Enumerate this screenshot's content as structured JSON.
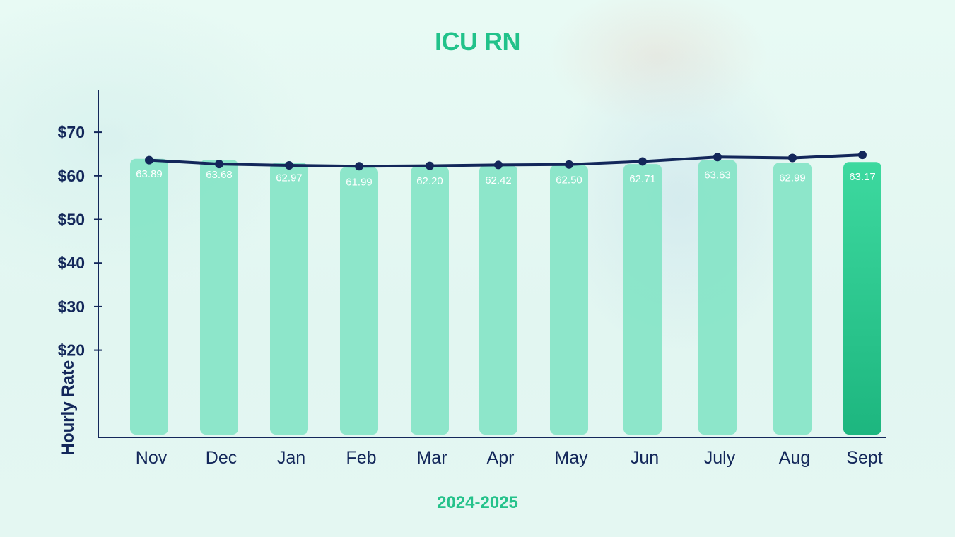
{
  "chart_data": {
    "type": "bar",
    "title": "ICU RN",
    "xlabel": "2024-2025",
    "ylabel": "Hourly Rate",
    "categories": [
      "Nov",
      "Dec",
      "Jan",
      "Feb",
      "Mar",
      "Apr",
      "May",
      "Jun",
      "July",
      "Aug",
      "Sept"
    ],
    "values": [
      63.89,
      63.68,
      62.97,
      61.99,
      62.2,
      62.42,
      62.5,
      62.71,
      63.63,
      62.99,
      63.17
    ],
    "value_labels": [
      "63.89",
      "63.68",
      "62.97",
      "61.99",
      "62.20",
      "62.42",
      "62.50",
      "62.71",
      "63.63",
      "62.99",
      "63.17"
    ],
    "line_values": [
      63.6,
      62.7,
      62.4,
      62.2,
      62.3,
      62.5,
      62.6,
      63.3,
      64.3,
      64.1,
      64.8
    ],
    "yticks": [
      20,
      30,
      40,
      50,
      60,
      70
    ],
    "ytick_labels": [
      "$20",
      "$30",
      "$40",
      "$50",
      "$60",
      "$70"
    ],
    "ylim": [
      0,
      73
    ],
    "grid": false,
    "colors": {
      "bar": "#7ee3c3",
      "bar_highlight": "#22c487",
      "line": "#13275a",
      "title": "#21c28a",
      "axis": "#13275a"
    }
  }
}
